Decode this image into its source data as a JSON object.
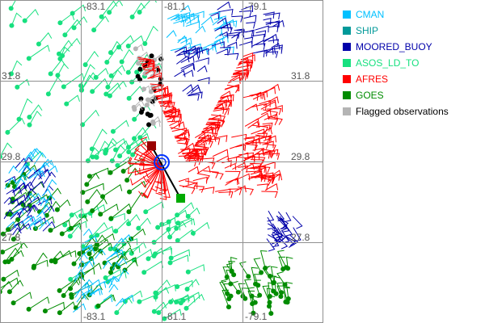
{
  "map": {
    "longitude_labels": [
      "-83.1",
      "-81.1",
      "-79.1"
    ],
    "latitude_labels": [
      "31.8",
      "29.8",
      "27.8"
    ]
  },
  "legend": {
    "items": [
      {
        "label": "CMAN",
        "color": "#00c0ff"
      },
      {
        "label": "SHIP",
        "color": "#009999"
      },
      {
        "label": "MOORED_BUOY",
        "color": "#0000aa"
      },
      {
        "label": "ASOS_LD_TO",
        "color": "#17e07f"
      },
      {
        "label": "AFRES",
        "color": "#ff0000"
      },
      {
        "label": "GOES",
        "color": "#008c00"
      },
      {
        "label": "Flagged observations",
        "color": "#b4b4b4",
        "text_color": "#000000"
      }
    ]
  }
}
